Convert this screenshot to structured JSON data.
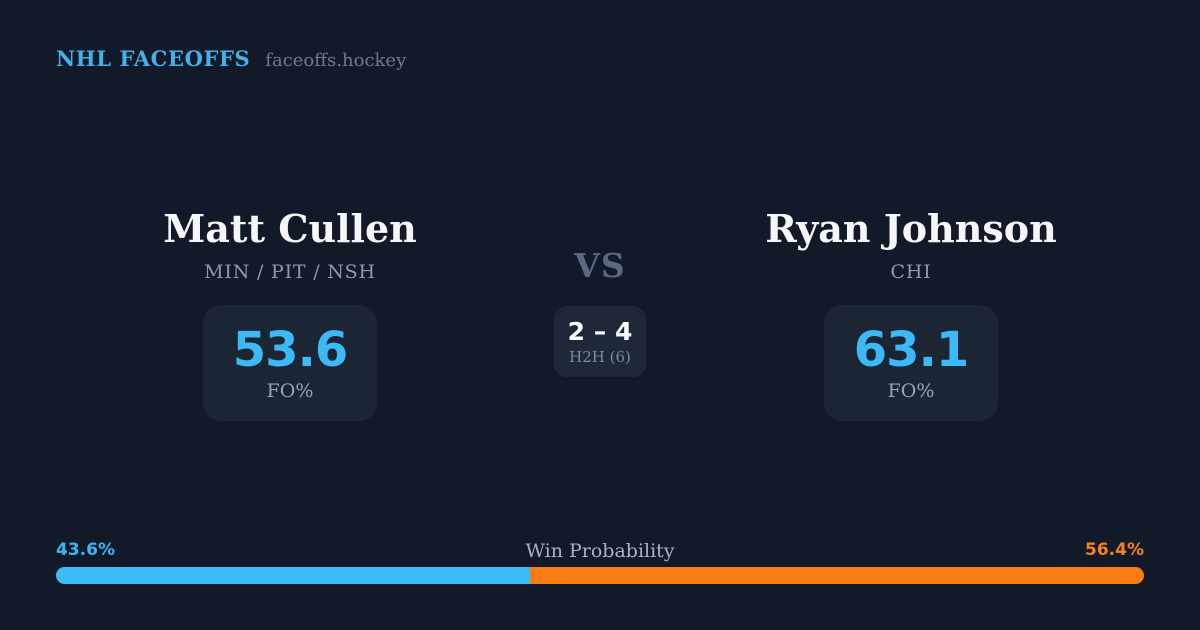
{
  "header": {
    "brand": "NHL FACEOFFS",
    "site": "faceoffs.hockey"
  },
  "players": {
    "left": {
      "name": "Matt Cullen",
      "teams": "MIN / PIT / NSH",
      "stat_value": "53.6",
      "stat_label": "FO%"
    },
    "right": {
      "name": "Ryan Johnson",
      "teams": "CHI",
      "stat_value": "63.1",
      "stat_label": "FO%"
    }
  },
  "center": {
    "vs": "VS",
    "h2h_score": "2 – 4",
    "h2h_label": "H2H (6)"
  },
  "win_probability": {
    "label": "Win Probability",
    "left_pct": "43.6%",
    "right_pct": "56.4%",
    "left_value": 43.6,
    "right_value": 56.4,
    "left_color": "#3bbcf7",
    "right_color": "#f97d12",
    "left_label_color": "#3ab6f3",
    "right_label_color": "#f8831d"
  },
  "colors": {
    "background": "#121a29",
    "card_background": "#1b2533",
    "stat_blue": "#3cb9f7",
    "brand_blue": "#45b1ea"
  }
}
